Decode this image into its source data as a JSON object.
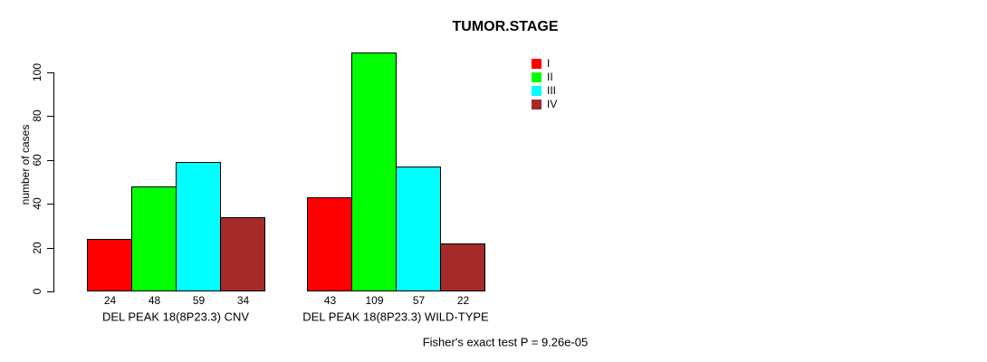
{
  "chart_data": {
    "type": "bar",
    "title": "TUMOR.STAGE",
    "ylabel": "number of cases",
    "xlabel": "",
    "yticks": [
      0,
      20,
      40,
      60,
      80,
      100
    ],
    "ylim": [
      0,
      109
    ],
    "grid": false,
    "legend_position": "top-right",
    "categories": [
      "DEL PEAK 18(8P23.3) CNV",
      "DEL PEAK 18(8P23.3) WILD-TYPE"
    ],
    "series": [
      {
        "name": "I",
        "color": "#FF0000",
        "values": [
          24,
          43
        ]
      },
      {
        "name": "II",
        "color": "#00FF00",
        "values": [
          48,
          109
        ]
      },
      {
        "name": "III",
        "color": "#00FFFF",
        "values": [
          59,
          57
        ]
      },
      {
        "name": "IV",
        "color": "#A52A2A",
        "values": [
          34,
          22
        ]
      }
    ],
    "annotation": "Fisher's exact test P = 9.26e-05",
    "axis_color": "#000000"
  }
}
